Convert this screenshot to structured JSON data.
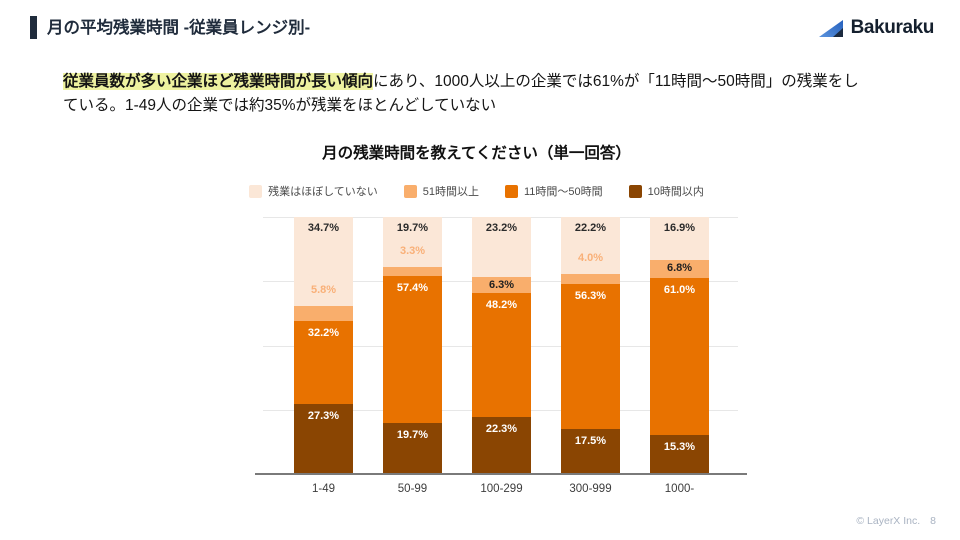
{
  "header": {
    "title": "月の平均残業時間 -従業員レンジ別-",
    "accent_color": "#202c3c"
  },
  "logo": {
    "icon": "bakuraku-sail-icon",
    "text": "Bakuraku"
  },
  "summary": {
    "highlight": "従業員数が多い企業ほど残業時間が長い傾向",
    "highlight_color": "#eef2a0",
    "line1_rest": "にあり、1000人以上の企業では61%が「11時間〜50時間」の残業をし",
    "line2": "ている。1-49人の企業では約35%が残業をほとんどしていない"
  },
  "chart_data": {
    "type": "bar",
    "stacked": true,
    "title": "月の残業時間を教えてください（単一回答）",
    "categories": [
      "1-49",
      "50-99",
      "100-299",
      "300-999",
      "1000-"
    ],
    "series": [
      {
        "name": "10時間以内",
        "color": "#8a4502",
        "label_style": "inside-white",
        "values": [
          27.3,
          19.7,
          22.3,
          17.5,
          15.3
        ]
      },
      {
        "name": "11時間〜50時間",
        "color": "#e87200",
        "label_style": "inside-white",
        "values": [
          32.2,
          57.4,
          48.2,
          56.3,
          61.0
        ]
      },
      {
        "name": "51時間以上",
        "color": "#f9ae6c",
        "label_style": "auto",
        "values": [
          5.8,
          3.3,
          6.3,
          4.0,
          6.8
        ]
      },
      {
        "name": "残業はほぼしていない",
        "color": "#fbe7d7",
        "label_style": "inside-dark",
        "values": [
          34.7,
          19.7,
          23.2,
          22.2,
          16.9
        ]
      }
    ],
    "legend_order": [
      "残業はほぼしていない",
      "51時間以上",
      "11時間〜50時間",
      "10時間以内"
    ],
    "ylim": [
      0,
      100
    ],
    "gridlines": [
      0,
      25,
      50,
      75,
      100
    ],
    "grid_color": "#e7e7e7",
    "axis_color": "#7a7a7a",
    "small_label_color": "#f9b078",
    "legend_position": "top-center"
  },
  "footer": {
    "copyright": "© LayerX Inc.",
    "page": "8"
  }
}
